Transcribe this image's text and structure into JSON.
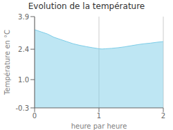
{
  "chart_data": {
    "type": "area",
    "title": "Evolution de la température",
    "x_label": "heure par heure",
    "y_label": "Température en °C",
    "x": [
      0,
      0.1,
      0.2,
      0.3,
      0.4,
      0.5,
      0.6,
      0.7,
      0.8,
      0.9,
      1.0,
      1.05,
      1.1,
      1.2,
      1.3,
      1.4,
      1.5,
      1.6,
      1.7,
      1.8,
      1.9,
      2.0
    ],
    "values": [
      3.3,
      3.2,
      3.1,
      2.95,
      2.85,
      2.75,
      2.65,
      2.58,
      2.52,
      2.47,
      2.42,
      2.41,
      2.42,
      2.44,
      2.47,
      2.51,
      2.56,
      2.61,
      2.65,
      2.68,
      2.72,
      2.75
    ],
    "xlim": [
      0,
      2
    ],
    "ylim": [
      -0.3,
      3.9
    ],
    "xticks": [
      0,
      1,
      2
    ],
    "yticks": [
      -0.3,
      {
        "value": 1.0,
        "label": "1.0"
      },
      2.4,
      3.9
    ],
    "color": "#7dcde8",
    "grid": "x"
  }
}
